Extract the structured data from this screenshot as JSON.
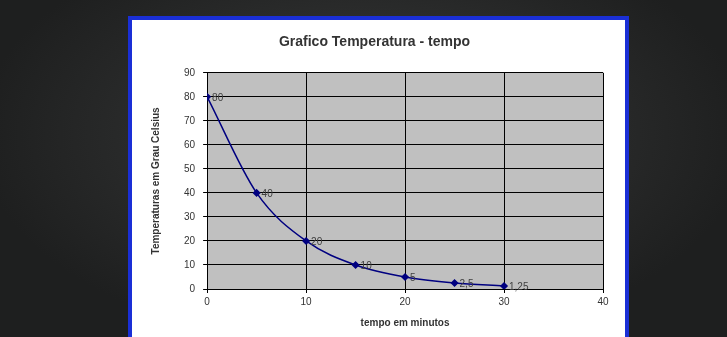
{
  "chart_data": {
    "type": "line",
    "title": "Grafico Temperatura - tempo",
    "x_label": "tempo em minutos",
    "y_label": "Temperaturas em Grau Celsius",
    "x": [
      0,
      5,
      10,
      15,
      20,
      25,
      30
    ],
    "values": [
      80,
      40,
      20,
      10,
      5,
      2.5,
      1.25
    ],
    "value_labels": [
      "80",
      "40",
      "20",
      "10",
      "5",
      "2,5",
      "1,25"
    ],
    "xlim": [
      0,
      40
    ],
    "xticks": [
      0,
      10,
      20,
      30,
      40
    ],
    "ylim": [
      0,
      90
    ],
    "yticks": [
      0,
      10,
      20,
      30,
      40,
      50,
      60,
      70,
      80,
      90
    ],
    "grid": true,
    "data_labels": true,
    "color": "#000080",
    "marker": "diamond"
  }
}
